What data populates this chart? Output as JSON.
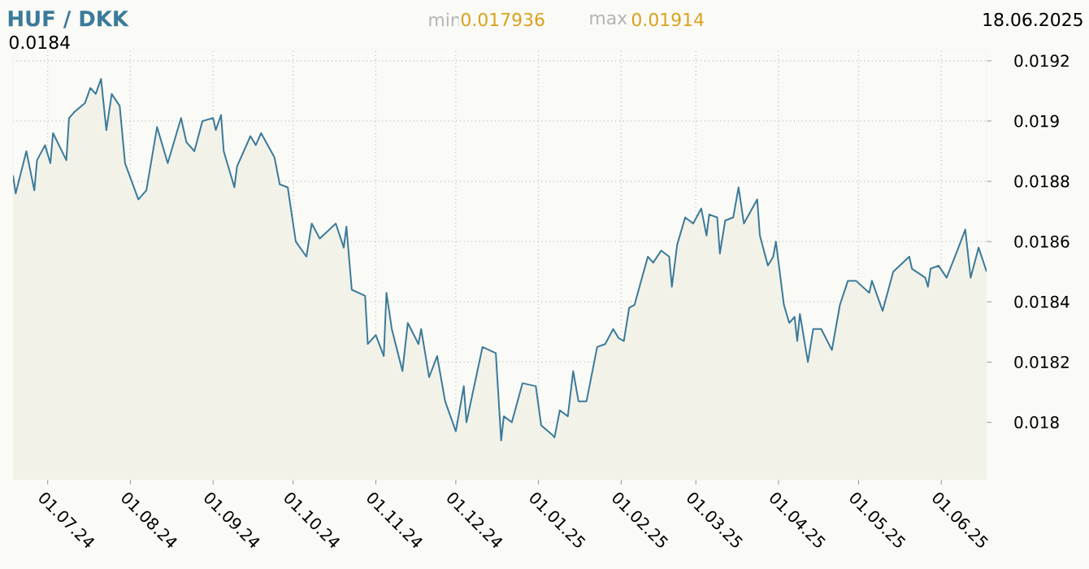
{
  "chart_data": {
    "type": "area",
    "title": "HUF / DKK",
    "subtitle": "18.06.2025",
    "annotations": [
      "min",
      "0.017936",
      "max",
      "0.01914",
      "0.0184"
    ],
    "x": [
      "2024-06-18",
      "2024-06-19",
      "2024-06-23",
      "2024-06-26",
      "2024-06-27",
      "2024-06-30",
      "2024-07-02",
      "2024-07-03",
      "2024-07-08",
      "2024-07-09",
      "2024-07-11",
      "2024-07-15",
      "2024-07-17",
      "2024-07-19",
      "2024-07-21",
      "2024-07-23",
      "2024-07-25",
      "2024-07-28",
      "2024-07-30",
      "2024-08-04",
      "2024-08-07",
      "2024-08-11",
      "2024-08-15",
      "2024-08-20",
      "2024-08-22",
      "2024-08-25",
      "2024-08-28",
      "2024-09-01",
      "2024-09-02",
      "2024-09-04",
      "2024-09-05",
      "2024-09-09",
      "2024-09-10",
      "2024-09-15",
      "2024-09-17",
      "2024-09-19",
      "2024-09-24",
      "2024-09-26",
      "2024-09-29",
      "2024-10-02",
      "2024-10-06",
      "2024-10-08",
      "2024-10-11",
      "2024-10-17",
      "2024-10-20",
      "2024-10-21",
      "2024-10-23",
      "2024-10-28",
      "2024-10-29",
      "2024-11-01",
      "2024-11-04",
      "2024-11-05",
      "2024-11-07",
      "2024-11-11",
      "2024-11-13",
      "2024-11-17",
      "2024-11-18",
      "2024-11-21",
      "2024-11-24",
      "2024-11-27",
      "2024-12-01",
      "2024-12-04",
      "2024-12-05",
      "2024-12-11",
      "2024-12-16",
      "2024-12-18",
      "2024-12-19",
      "2024-12-22",
      "2024-12-26",
      "2024-12-31",
      "2025-01-02",
      "2025-01-06",
      "2025-01-07",
      "2025-01-09",
      "2025-01-12",
      "2025-01-14",
      "2025-01-16",
      "2025-01-19",
      "2025-01-23",
      "2025-01-26",
      "2025-01-29",
      "2025-01-31",
      "2025-02-02",
      "2025-02-04",
      "2025-02-06",
      "2025-02-11",
      "2025-02-13",
      "2025-02-16",
      "2025-02-19",
      "2025-02-20",
      "2025-02-22",
      "2025-02-25",
      "2025-02-28",
      "2025-03-03",
      "2025-03-05",
      "2025-03-06",
      "2025-03-09",
      "2025-03-10",
      "2025-03-12",
      "2025-03-15",
      "2025-03-17",
      "2025-03-19",
      "2025-03-24",
      "2025-03-25",
      "2025-03-28",
      "2025-03-30",
      "2025-03-31",
      "2025-04-03",
      "2025-04-05",
      "2025-04-07",
      "2025-04-08",
      "2025-04-09",
      "2025-04-12",
      "2025-04-14",
      "2025-04-17",
      "2025-04-21",
      "2025-04-24",
      "2025-04-27",
      "2025-04-30",
      "2025-05-05",
      "2025-05-06",
      "2025-05-10",
      "2025-05-14",
      "2025-05-20",
      "2025-05-21",
      "2025-05-26",
      "2025-05-27",
      "2025-05-28",
      "2025-05-31",
      "2025-06-03",
      "2025-06-07",
      "2025-06-10",
      "2025-06-12",
      "2025-06-15",
      "2025-06-18"
    ],
    "series": [
      {
        "color": "#3b7a9a",
        "values": [
          0.01882,
          0.01876,
          0.0189,
          0.01877,
          0.01887,
          0.01892,
          0.01886,
          0.01896,
          0.01887,
          0.01901,
          0.01903,
          0.01906,
          0.01911,
          0.01909,
          0.01914,
          0.01897,
          0.01909,
          0.01905,
          0.01886,
          0.01874,
          0.01877,
          0.01898,
          0.01886,
          0.01901,
          0.01893,
          0.0189,
          0.019,
          0.01901,
          0.01897,
          0.01902,
          0.0189,
          0.01878,
          0.01885,
          0.01895,
          0.01892,
          0.01896,
          0.01888,
          0.01879,
          0.01878,
          0.0186,
          0.01855,
          0.01866,
          0.01861,
          0.01866,
          0.01858,
          0.01865,
          0.01844,
          0.01842,
          0.01826,
          0.01829,
          0.01822,
          0.01843,
          0.01831,
          0.01817,
          0.01833,
          0.01826,
          0.01831,
          0.01815,
          0.01822,
          0.01807,
          0.01797,
          0.01812,
          0.018,
          0.01825,
          0.01823,
          0.01794,
          0.01802,
          0.018,
          0.01813,
          0.01812,
          0.01799,
          0.01796,
          0.01795,
          0.01804,
          0.01802,
          0.01817,
          0.01807,
          0.01807,
          0.01825,
          0.01826,
          0.01831,
          0.01828,
          0.01827,
          0.01838,
          0.01839,
          0.01855,
          0.01853,
          0.01857,
          0.01855,
          0.01845,
          0.01859,
          0.01868,
          0.01866,
          0.01871,
          0.01862,
          0.01869,
          0.01868,
          0.01856,
          0.01867,
          0.01868,
          0.01878,
          0.01866,
          0.01874,
          0.01862,
          0.01852,
          0.01855,
          0.0186,
          0.01839,
          0.01833,
          0.01835,
          0.01827,
          0.01836,
          0.0182,
          0.01831,
          0.01831,
          0.01824,
          0.01839,
          0.01847,
          0.01847,
          0.01843,
          0.01847,
          0.01837,
          0.0185,
          0.01855,
          0.01851,
          0.01848,
          0.01845,
          0.01851,
          0.01852,
          0.01848,
          0.01857,
          0.01864,
          0.01848,
          0.01858,
          0.0185
        ]
      }
    ],
    "xlim": [
      "2024-06-18",
      "2025-06-18"
    ],
    "xticks": [
      {
        "value": "2024-07-01",
        "label": "01.07.24"
      },
      {
        "value": "2024-08-01",
        "label": "01.08.24"
      },
      {
        "value": "2024-09-01",
        "label": "01.09.24"
      },
      {
        "value": "2024-10-01",
        "label": "01.10.24"
      },
      {
        "value": "2024-11-01",
        "label": "01.11.24"
      },
      {
        "value": "2024-12-01",
        "label": "01.12.24"
      },
      {
        "value": "2025-01-01",
        "label": "01.01.25"
      },
      {
        "value": "2025-02-01",
        "label": "01.02.25"
      },
      {
        "value": "2025-03-01",
        "label": "01.03.25"
      },
      {
        "value": "2025-04-01",
        "label": "01.04.25"
      },
      {
        "value": "2025-05-01",
        "label": "01.05.25"
      },
      {
        "value": "2025-06-01",
        "label": "01.06.25"
      }
    ],
    "ylim": [
      0.01781,
      0.01924
    ],
    "yticks": [
      0.018,
      0.0182,
      0.0184,
      0.0186,
      0.0188,
      0.019,
      0.0192
    ],
    "grid": true
  }
}
